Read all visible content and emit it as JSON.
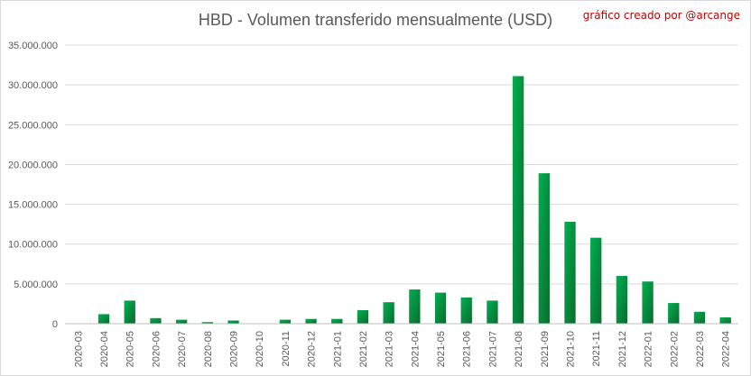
{
  "chart_data": {
    "type": "bar",
    "title": "HBD - Volumen transferido mensualmente (USD)",
    "credit": "gráfico creado por @arcange",
    "xlabel": "",
    "ylabel": "",
    "ylim": [
      0,
      35000000
    ],
    "yticks": [
      0,
      5000000,
      10000000,
      15000000,
      20000000,
      25000000,
      30000000,
      35000000
    ],
    "ytick_labels": [
      "0",
      "5.000.000",
      "10.000.000",
      "15.000.000",
      "20.000.000",
      "25.000.000",
      "30.000.000",
      "35.000.000"
    ],
    "grid": true,
    "legend": "none",
    "colors": {
      "bar_light": "#00b050",
      "bar_dark": "#0b6b2e",
      "grid": "#d9d9d9",
      "text": "#595959"
    },
    "categories": [
      "2020-03",
      "2020-04",
      "2020-05",
      "2020-06",
      "2020-07",
      "2020-08",
      "2020-09",
      "2020-10",
      "2020-11",
      "2020-12",
      "2021-01",
      "2021-02",
      "2021-03",
      "2021-04",
      "2021-05",
      "2021-06",
      "2021-07",
      "2021-08",
      "2021-09",
      "2021-10",
      "2021-11",
      "2021-12",
      "2022-01",
      "2022-02",
      "2022-03",
      "2022-04"
    ],
    "values": [
      0,
      1200000,
      2900000,
      700000,
      500000,
      200000,
      400000,
      0,
      500000,
      600000,
      600000,
      1700000,
      2700000,
      4300000,
      3900000,
      3300000,
      2900000,
      31100000,
      18900000,
      12800000,
      10800000,
      6000000,
      5300000,
      2600000,
      1500000,
      800000
    ]
  }
}
